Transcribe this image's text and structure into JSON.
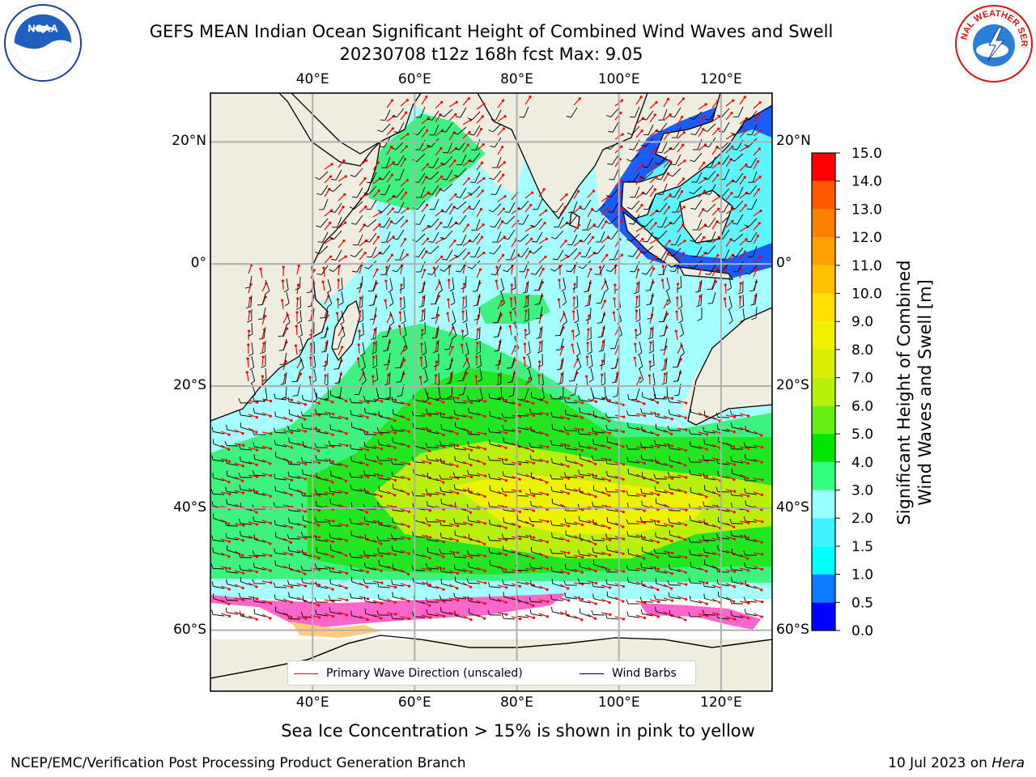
{
  "header": {
    "title_line1": "GEFS MEAN Indian Ocean Significant Height of Combined Wind Waves and Swell",
    "title_line2": "20230708 t12z 168h fcst   Max: 9.05"
  },
  "logos": {
    "left": {
      "text": "NOAA",
      "icon": "noaa-logo"
    },
    "right": {
      "text": "NATIONAL WEATHER SERVICE",
      "icon": "nws-logo"
    }
  },
  "map": {
    "lon_ticks": [
      "40°E",
      "60°E",
      "80°E",
      "100°E",
      "120°E"
    ],
    "lat_ticks": [
      "20°N",
      "0°",
      "20°S",
      "40°S",
      "60°S"
    ],
    "lon_values": [
      40,
      60,
      80,
      100,
      120
    ],
    "lat_values": [
      20,
      0,
      -20,
      -40,
      -60
    ],
    "lon_range": [
      20,
      130
    ],
    "lat_range": [
      -70,
      28
    ],
    "land_color": "#efeddf",
    "grid": true
  },
  "colorbar": {
    "label_line1": "Significant Height of Combined",
    "label_line2": "Wind Waves and Swell [m]",
    "ticks": [
      "0.0",
      "0.5",
      "1.0",
      "1.5",
      "2.0",
      "3.0",
      "4.0",
      "5.0",
      "6.0",
      "7.0",
      "8.0",
      "9.0",
      "10.0",
      "11.0",
      "12.0",
      "13.0",
      "14.0",
      "15.0"
    ],
    "colors": [
      "#0000ff",
      "#0a7bff",
      "#00ffff",
      "#3ff2ff",
      "#99ffff",
      "#33ff7f",
      "#00e600",
      "#66ee11",
      "#b8f00c",
      "#d8f000",
      "#f0f000",
      "#ffe000",
      "#ffc000",
      "#ffa000",
      "#ff8000",
      "#ff5a00",
      "#ff0000"
    ]
  },
  "legend": {
    "wave_direction": "Primary Wave Direction (unscaled)",
    "wind_barbs": "Wind Barbs",
    "wave_color": "#ff0000",
    "barb_color": "#000000"
  },
  "notes": {
    "ice": "Sea Ice Concentration > 15% is shown in pink to yellow"
  },
  "footer": {
    "left": "NCEP/EMC/Verification Post Processing Product Generation Branch",
    "date": "10 Jul 2023 on ",
    "machine": "Hera"
  }
}
